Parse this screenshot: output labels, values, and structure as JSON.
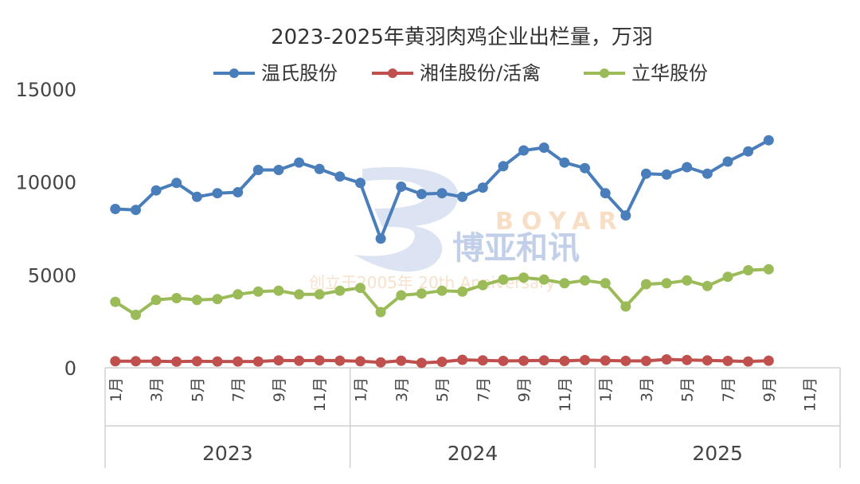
{
  "chart_data": {
    "type": "line",
    "title": "2023-2025年黄羽肉鸡企业出栏量，万羽",
    "ylim": [
      0,
      15000
    ],
    "yticks": [
      "0",
      "5000",
      "10000",
      "15000"
    ],
    "legend_position": "top",
    "grid": false,
    "years": [
      "2023",
      "2024",
      "2025"
    ],
    "month_labels": [
      "1月",
      "",
      "3月",
      "",
      "5月",
      "",
      "7月",
      "",
      "9月",
      "",
      "11月",
      ""
    ],
    "series": [
      {
        "name": "温氏股份",
        "color": "#4a7ebb",
        "values": [
          8550,
          8500,
          9550,
          9950,
          9200,
          9400,
          9450,
          10650,
          10650,
          11050,
          10700,
          10300,
          9950,
          6950,
          9750,
          9350,
          9400,
          9200,
          9700,
          10850,
          11700,
          11850,
          11050,
          10750,
          9400,
          8200,
          10450,
          10400,
          10800,
          10450,
          11100,
          11650,
          12250
        ]
      },
      {
        "name": "湘佳股份/活禽",
        "color": "#c0504d",
        "values": [
          350,
          350,
          350,
          330,
          350,
          340,
          340,
          340,
          400,
          380,
          400,
          380,
          350,
          290,
          380,
          260,
          320,
          430,
          400,
          370,
          380,
          400,
          370,
          410,
          390,
          370,
          370,
          450,
          420,
          400,
          370,
          340,
          380
        ]
      },
      {
        "name": "立华股份",
        "color": "#9bbb59",
        "values": [
          3550,
          2850,
          3650,
          3750,
          3650,
          3700,
          3950,
          4100,
          4150,
          3950,
          3950,
          4150,
          4300,
          3000,
          3900,
          4000,
          4150,
          4100,
          4450,
          4750,
          4850,
          4750,
          4550,
          4700,
          4550,
          3300,
          4500,
          4550,
          4700,
          4400,
          4900,
          5250,
          5300
        ]
      }
    ]
  },
  "watermark": {
    "brand_cn": "博亚和讯",
    "brand_latin": "BOYAR",
    "tagline": "创立于2005年 20th Anniversary"
  }
}
